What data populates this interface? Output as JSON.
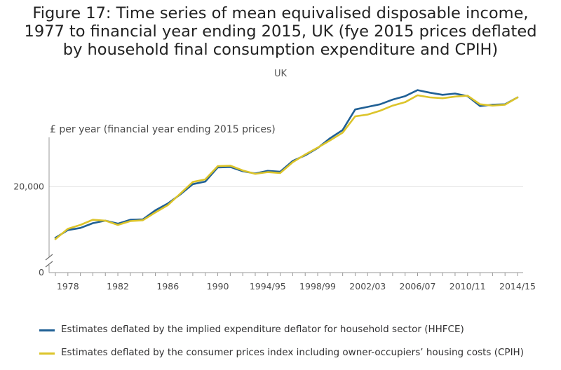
{
  "title_lines": [
    "Figure 17: Time series of mean equivalised disposable income,",
    "1977 to financial year ending 2015, UK (fye 2015 prices deflated",
    "by household final consumption expenditure and CPIH)"
  ],
  "subtitle": "UK",
  "chart_data": {
    "type": "line",
    "ylabel": "£ per year (financial year ending 2015 prices)",
    "ylim": [
      0,
      31500
    ],
    "y_axis_break": true,
    "y_ticks": [
      {
        "value": 0,
        "label": "0"
      },
      {
        "value": 20000,
        "label": "20,000"
      }
    ],
    "x_tick_labels": [
      "1978",
      "1982",
      "1986",
      "1990",
      "1994/95",
      "1998/99",
      "2002/03",
      "2006/07",
      "2010/11",
      "2014/15"
    ],
    "x": [
      "1977",
      "1978",
      "1979",
      "1980",
      "1981",
      "1982",
      "1983",
      "1984",
      "1985",
      "1986",
      "1987",
      "1988",
      "1989",
      "1990",
      "1991",
      "1992",
      "1993",
      "1994/95",
      "1995/96",
      "1996/97",
      "1997/98",
      "1998/99",
      "1999/00",
      "2000/01",
      "2001/02",
      "2002/03",
      "2003/04",
      "2004/05",
      "2005/06",
      "2006/07",
      "2007/08",
      "2008/09",
      "2009/10",
      "2010/11",
      "2011/12",
      "2012/13",
      "2013/14",
      "2014/15"
    ],
    "series": [
      {
        "name": "Estimates deflated by the implied expenditure deflator for household sector (HHFCE)",
        "color": "#206095",
        "values": [
          8100,
          9900,
          10400,
          11500,
          12100,
          11400,
          12300,
          12400,
          14500,
          16100,
          18200,
          20600,
          21200,
          24500,
          24600,
          23600,
          23100,
          23700,
          23500,
          26000,
          27300,
          29000,
          31300,
          33200,
          38000,
          38600,
          39200,
          40300,
          41100,
          42500,
          41900,
          41400,
          41700,
          41100,
          38800,
          39100,
          39200,
          40800
        ]
      },
      {
        "name": "Estimates deflated by the consumer prices index including owner-occupiers’ housing costs (CPIH)",
        "color": "#dcc42a",
        "values": [
          7800,
          10200,
          11100,
          12300,
          12100,
          11100,
          12000,
          12200,
          14000,
          15700,
          18400,
          21100,
          21700,
          24800,
          24900,
          23800,
          23000,
          23400,
          23200,
          25700,
          27500,
          29100,
          30800,
          32600,
          36400,
          36800,
          37700,
          38900,
          39700,
          41300,
          40800,
          40600,
          41000,
          41200,
          39200,
          38900,
          39100,
          40800
        ]
      }
    ]
  }
}
